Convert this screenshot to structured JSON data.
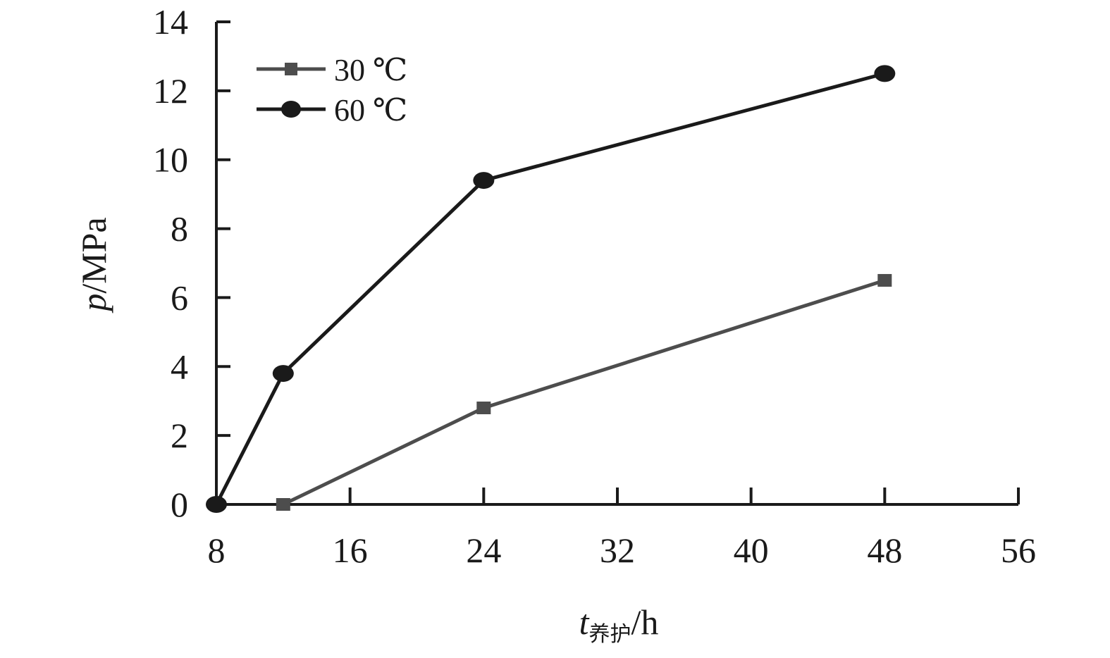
{
  "chart_data": {
    "type": "line",
    "x": [
      8,
      12,
      24,
      48
    ],
    "xlim": [
      8,
      56
    ],
    "ylim": [
      0,
      14
    ],
    "xticks": [
      8,
      16,
      24,
      32,
      40,
      48,
      56
    ],
    "yticks": [
      0,
      2,
      4,
      6,
      8,
      10,
      12,
      14
    ],
    "ylabel": {
      "var": "p",
      "unit": "/MPa"
    },
    "xlabel": {
      "var": "t",
      "subscript": "养护",
      "unit": "/h"
    },
    "legend_position": "top-left",
    "grid": false,
    "series": [
      {
        "name": "30 ℃",
        "marker": "square",
        "color": "#4d4d4d",
        "points": [
          [
            12,
            0
          ],
          [
            24,
            2.8
          ],
          [
            48,
            6.5
          ]
        ]
      },
      {
        "name": "60 ℃",
        "marker": "circle",
        "color": "#1a1a1a",
        "points": [
          [
            8,
            0
          ],
          [
            12,
            3.8
          ],
          [
            24,
            9.4
          ],
          [
            48,
            12.5
          ]
        ]
      }
    ]
  }
}
